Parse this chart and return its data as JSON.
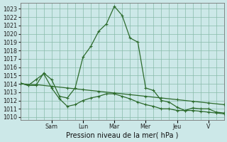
{
  "xlabel": "Pression niveau de la mer( hPa )",
  "bg_color": "#cce8e8",
  "grid_color": "#88bbaa",
  "line_color": "#2d6b2d",
  "ylim_min": 1009.7,
  "ylim_max": 1023.7,
  "yticks": [
    1010,
    1011,
    1012,
    1013,
    1014,
    1015,
    1016,
    1017,
    1018,
    1019,
    1020,
    1021,
    1022,
    1023
  ],
  "day_labels": [
    "Sam",
    "Lun",
    "Mar",
    "Mer",
    "Jeu",
    "V"
  ],
  "day_tick_x": [
    24,
    48,
    72,
    96,
    120,
    144
  ],
  "xlim_min": 0,
  "xlim_max": 156,
  "series1_x": [
    0,
    6,
    12,
    18,
    24,
    30,
    36,
    42,
    48,
    54,
    60,
    66,
    72,
    78,
    84,
    90,
    96,
    102,
    108,
    114,
    120,
    126,
    132,
    138,
    144,
    150,
    156
  ],
  "series1_y": [
    1014.1,
    1013.8,
    1013.8,
    1015.3,
    1014.5,
    1012.5,
    1012.3,
    1013.5,
    1017.2,
    1018.5,
    1020.3,
    1021.2,
    1023.3,
    1022.2,
    1019.5,
    1019.0,
    1013.5,
    1013.2,
    1012.0,
    1011.8,
    1011.2,
    1010.8,
    1011.1,
    1011.0,
    1011.0,
    1010.6,
    1010.5
  ],
  "series2_x": [
    0,
    12,
    24,
    36,
    48,
    60,
    72,
    84,
    96,
    108,
    120,
    132,
    144,
    156
  ],
  "series2_y": [
    1014.0,
    1013.9,
    1013.7,
    1013.5,
    1013.3,
    1013.1,
    1012.9,
    1012.7,
    1012.5,
    1012.3,
    1012.1,
    1011.9,
    1011.7,
    1011.5
  ],
  "series3_x": [
    0,
    6,
    12,
    18,
    24,
    30,
    36,
    42,
    48,
    54,
    60,
    66,
    72,
    78,
    84,
    90,
    96,
    102,
    108,
    114,
    120,
    126,
    132,
    138,
    144,
    150,
    156
  ],
  "series3_y": [
    1014.1,
    1013.8,
    1014.5,
    1015.2,
    1013.5,
    1012.2,
    1011.3,
    1011.5,
    1012.0,
    1012.3,
    1012.5,
    1012.8,
    1012.8,
    1012.5,
    1012.2,
    1011.8,
    1011.5,
    1011.3,
    1011.0,
    1011.0,
    1010.8,
    1010.8,
    1010.8,
    1010.7,
    1010.6,
    1010.5,
    1010.4
  ],
  "marker_size": 2.5,
  "line_width": 0.9,
  "tick_fontsize": 5.8,
  "label_fontsize": 7.0
}
